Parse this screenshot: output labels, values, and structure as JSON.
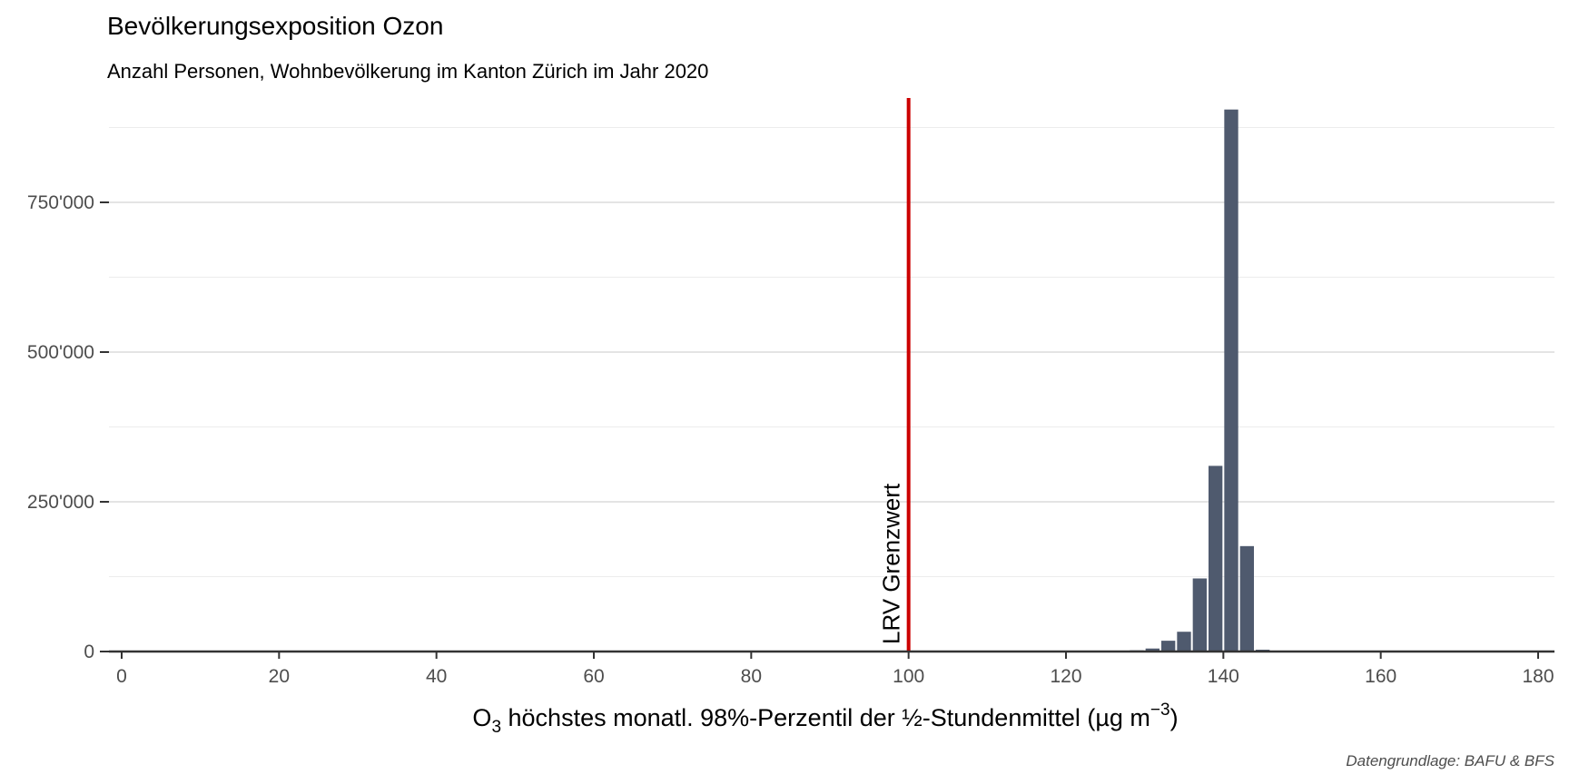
{
  "chart_data": {
    "type": "bar",
    "title": "Bevölkerungsexposition Ozon",
    "subtitle": "Anzahl Personen, Wohnbevölkerung im Kanton Zürich im Jahr 2020",
    "xlabel_parts": {
      "prefix": "O",
      "prefix_sub": "3",
      "main": " höchstes monatl. 98%-Perzentil der ½-Stundenmittel (µg m",
      "sup": "−3",
      "suffix": ")"
    },
    "caption": "Datengrundlage: BAFU & BFS",
    "xlim": [
      0,
      180
    ],
    "ylim": [
      0,
      900000
    ],
    "x_ticks": [
      0,
      20,
      40,
      60,
      80,
      100,
      120,
      140,
      160,
      180
    ],
    "x_tick_labels": [
      "0",
      "20",
      "40",
      "60",
      "80",
      "100",
      "120",
      "140",
      "160",
      "180"
    ],
    "y_ticks": [
      0,
      250000,
      500000,
      750000
    ],
    "y_tick_labels": [
      "0",
      "250'000",
      "500'000",
      "750'000"
    ],
    "bin_width": 2,
    "bars": [
      {
        "x": 129,
        "y": 2000
      },
      {
        "x": 131,
        "y": 5000
      },
      {
        "x": 133,
        "y": 18000
      },
      {
        "x": 135,
        "y": 33000
      },
      {
        "x": 137,
        "y": 122000
      },
      {
        "x": 139,
        "y": 310000
      },
      {
        "x": 141,
        "y": 905000
      },
      {
        "x": 143,
        "y": 176000
      },
      {
        "x": 145,
        "y": 3000
      }
    ],
    "reference_line": {
      "x": 100,
      "label": "LRV Grenzwert",
      "color": "#cc0000"
    },
    "bar_color": "#4f5a6e",
    "grid": true,
    "legend": "none"
  }
}
